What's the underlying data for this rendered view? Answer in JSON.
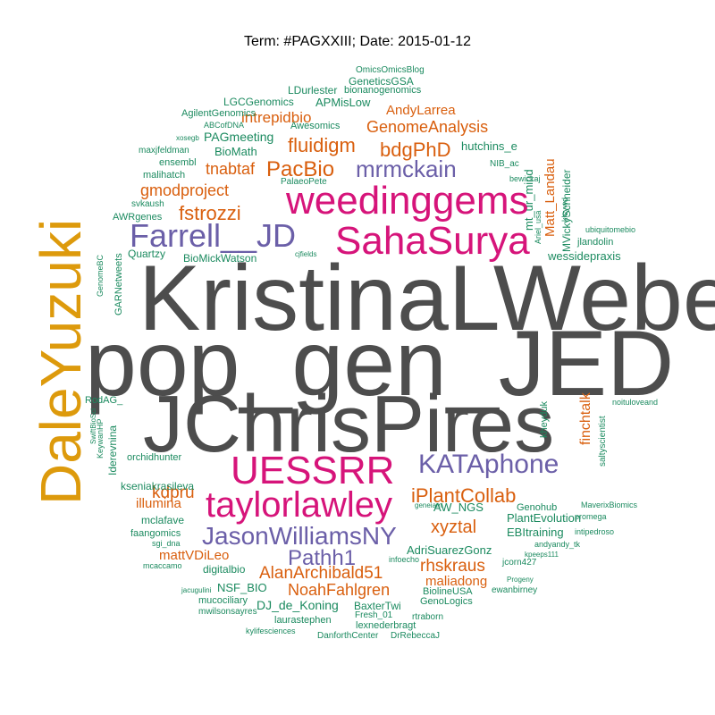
{
  "title": "Term: #PAGXXIII; Date: 2015-01-12",
  "colors": {
    "gray": "#4d4d4d",
    "magenta": "#d6147a",
    "purple": "#6b5fa8",
    "orange": "#d95f0e",
    "yellow": "#dd9a0c",
    "green": "#1b8a5f"
  },
  "words": [
    "KristinaLWeber",
    "pop_gen_JED",
    "JChrisPires",
    "DaleYuzuki",
    "weedinggems",
    "SahaSurya",
    "Farrell__JD",
    "UESSRR",
    "taylorlawley",
    "KATAphone",
    "mrmckain",
    "JasonWilliamsNY",
    "Pathh1",
    "PacBio",
    "fluidigm",
    "bdgPhD",
    "iPlantCollab",
    "xyztal",
    "AlanArchibald51",
    "NoahFahlgren",
    "rhskraus",
    "maliadong",
    "GenomeAnalysis",
    "intrepidbio",
    "AndyLarrea",
    "gmodproject",
    "fstrozzi",
    "tnabtaf",
    "kdpru",
    "illumina",
    "mattVDiLeo",
    "finchtalk",
    "Matt_Landau",
    "PAGmeeting",
    "BioMath",
    "LGCGenomics",
    "APMisLow",
    "LDurlester",
    "GeneticsGSA",
    "bionanogenomics",
    "OmicsOmicsBlog",
    "AgilentGenomics",
    "ABCofDNA",
    "Awesomics",
    "xosegb",
    "maxjfeldman",
    "ensembl",
    "malihatch",
    "svkaush",
    "AWRgenes",
    "Quartzy",
    "BioMickWatson",
    "cjfields",
    "PalaeoPete",
    "hutchins_e",
    "NIB_ac",
    "bewickaj",
    "mt_ur_mind",
    "Ariel_usa",
    "klsywd",
    "MVickySchneider",
    "ubiquitomebio",
    "jlandolin",
    "wessidepraxis",
    "GenomeBC",
    "GARNetweets",
    "RodAG_",
    "SwiftBioSci",
    "KeywanHP",
    "orchidhunter",
    "Iderevnina",
    "kseniakrasileva",
    "mclafave",
    "faangomics",
    "sgi_dna",
    "mcaccamo",
    "digitalbio",
    "jacugulini",
    "NSF_BIO",
    "mucociliary",
    "mwilsonsayres",
    "DJ_de_Koning",
    "laurastephen",
    "kylifesciences",
    "BaxterTwi",
    "Fresh_01",
    "DanforthCenter",
    "lexnederbragt",
    "DrRebeccaJ",
    "rtraborn",
    "GenoLogics",
    "BiolineUSA",
    "ewanbirney",
    "Progeny",
    "kpeeps111",
    "andyandy_tk",
    "intipedroso",
    "promega",
    "MaverixBiomics",
    "PlantEvolution",
    "EBItraining",
    "AdriSuarezGonz",
    "jcorn427",
    "infoecho",
    "AW_NGS",
    "Genohub",
    "geneiam",
    "kheyduk",
    "saltyscientist",
    "noituloveand"
  ]
}
